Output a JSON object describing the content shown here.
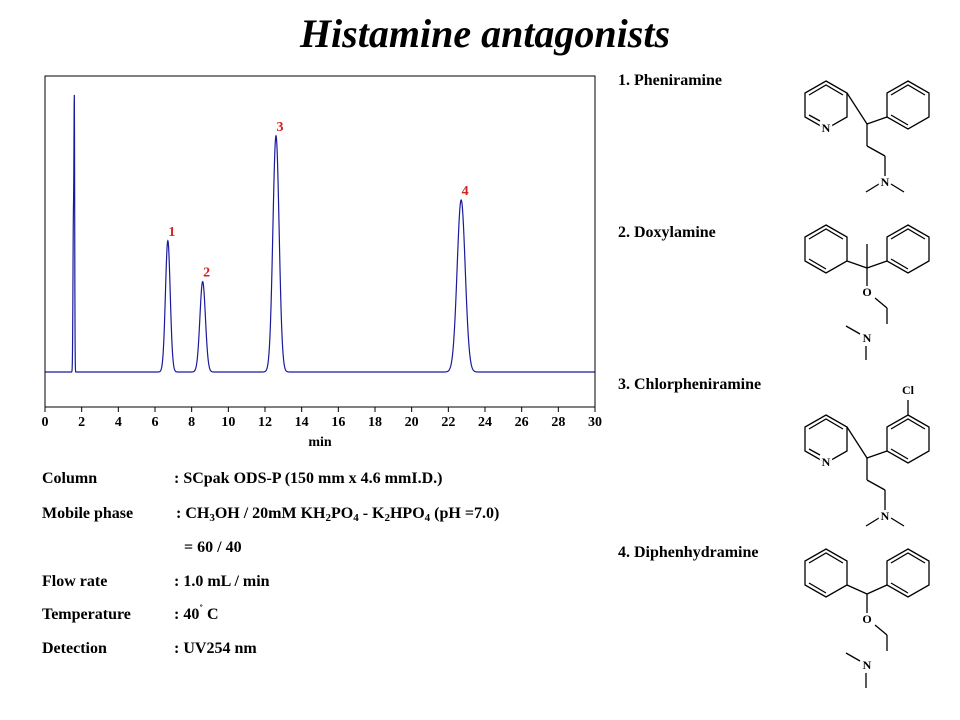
{
  "title": "Histamine antagonists",
  "chart_data": {
    "type": "line",
    "xlabel": "min",
    "xlim": [
      0,
      30
    ],
    "ylim": [
      0,
      1
    ],
    "x_ticks": [
      "0",
      "2",
      "4",
      "6",
      "8",
      "10",
      "12",
      "14",
      "16",
      "18",
      "20",
      "22",
      "24",
      "26",
      "28",
      "30"
    ],
    "grid": false,
    "line_color": "#1a1a9c",
    "label_color": "#d42020",
    "solvent_front": [
      {
        "time": 1.55,
        "height": 0.52,
        "width": 0.025
      },
      {
        "time": 1.6,
        "height": 0.88,
        "width": 0.02
      }
    ],
    "peaks": [
      {
        "label": "1",
        "time": 6.7,
        "height": 0.45,
        "width": 0.13
      },
      {
        "label": "2",
        "time": 8.6,
        "height": 0.31,
        "width": 0.15
      },
      {
        "label": "3",
        "time": 12.6,
        "height": 0.81,
        "width": 0.17
      },
      {
        "label": "4",
        "time": 22.7,
        "height": 0.59,
        "width": 0.22
      }
    ]
  },
  "conditions": {
    "column_label": "Column",
    "column_value": ": SCpak ODS-P  (150 mm x 4.6 mmI.D.)",
    "mobile_label": "Mobile phase",
    "mobile_p1": ": CH",
    "mobile_s1": "3",
    "mobile_p2": "OH / 20mM KH",
    "mobile_s2": "2",
    "mobile_p3": "PO",
    "mobile_s3": "4",
    "mobile_p4": " - K",
    "mobile_s4": "2",
    "mobile_p5": "HPO",
    "mobile_s5": "4",
    "mobile_p6": " (pH =7.0)",
    "mobile_ratio": "= 60 / 40",
    "flow_label": "Flow rate",
    "flow_value": ": 1.0 mL / min",
    "temp_label": "Temperature",
    "temp_value_a": ": 40",
    "temp_deg": "˚",
    "temp_value_b": " C",
    "detect_label": "Detection",
    "detect_value": ": UV254 nm"
  },
  "compounds": [
    {
      "name": "1. Pheniramine"
    },
    {
      "name": "2. Doxylamine"
    },
    {
      "name": "3. Chlorpheniramine"
    },
    {
      "name": "4. Diphenhydramine"
    }
  ],
  "atoms": {
    "n": "N",
    "o": "O",
    "cl": "Cl"
  }
}
